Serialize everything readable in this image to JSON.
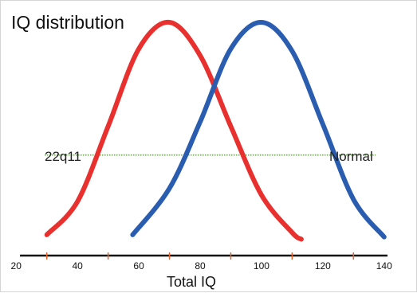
{
  "chart_data": {
    "type": "line",
    "title": "IQ distribution",
    "xlabel": "Total IQ",
    "ylabel": "",
    "xlim": [
      15,
      145
    ],
    "ylim": [
      0,
      1
    ],
    "x_ticks": [
      20,
      40,
      60,
      80,
      100,
      120,
      140
    ],
    "minor_ticks": [
      30,
      50,
      70,
      90,
      110,
      130
    ],
    "reference_line": {
      "y": 0.4
    },
    "series": [
      {
        "name": "22q11",
        "color": "#e8302e",
        "x": [
          30,
          40,
          50,
          60,
          70,
          80,
          90,
          100,
          110,
          113
        ],
        "y": [
          0.04,
          0.19,
          0.53,
          0.88,
          1.0,
          0.85,
          0.53,
          0.22,
          0.05,
          0.02
        ]
      },
      {
        "name": "Normal",
        "color": "#2a5db0",
        "x": [
          58,
          70,
          80,
          90,
          100,
          110,
          120,
          130,
          140
        ],
        "y": [
          0.04,
          0.25,
          0.55,
          0.88,
          1.0,
          0.87,
          0.54,
          0.2,
          0.03
        ]
      }
    ],
    "colors": {
      "axis": "#111111",
      "tick": "#e8642a",
      "reference": "#6aa84f",
      "text": "#111111"
    }
  }
}
